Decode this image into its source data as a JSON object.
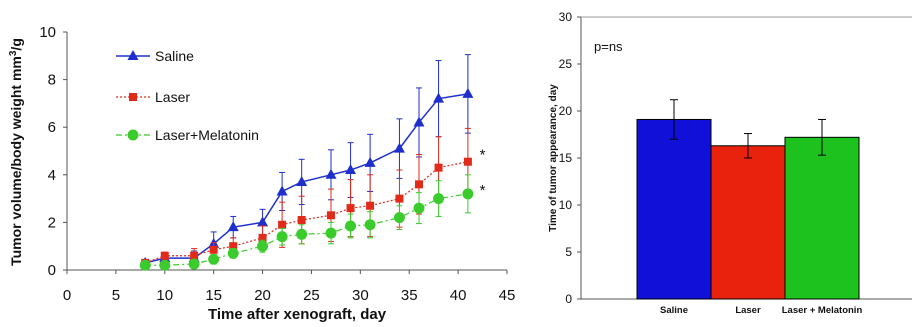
{
  "chart_data": [
    {
      "type": "line",
      "xlabel": "Time after xenograft, day",
      "ylabel_main": "Tumor volume/body weight mm",
      "ylabel_sup": "3",
      "ylabel_tail": "/g",
      "xlim": [
        0,
        45
      ],
      "ylim": [
        0,
        10
      ],
      "xticks": [
        "0",
        "5",
        "10",
        "15",
        "20",
        "25",
        "30",
        "35",
        "40",
        "45"
      ],
      "yticks": [
        "0",
        "2",
        "4",
        "6",
        "8",
        "10"
      ],
      "grid": false,
      "legend_placement": "top-left",
      "series": [
        {
          "name": "Saline",
          "color": "#1f2fcc",
          "marker": "triangle",
          "line": "solid",
          "x": [
            8,
            10,
            13,
            15,
            17,
            20,
            22,
            24,
            27,
            29,
            31,
            34,
            36,
            38,
            41
          ],
          "y": [
            0.3,
            0.5,
            0.5,
            1.1,
            1.8,
            2.0,
            3.3,
            3.7,
            4.0,
            4.2,
            4.5,
            5.1,
            6.2,
            7.2,
            7.4
          ],
          "err": [
            0.1,
            0.15,
            0.3,
            0.5,
            0.45,
            0.55,
            0.8,
            0.95,
            1.05,
            1.15,
            1.2,
            1.25,
            1.45,
            1.6,
            1.65
          ]
        },
        {
          "name": "Laser",
          "color": "#e02a1a",
          "marker": "square",
          "line": "dotted",
          "x": [
            8,
            10,
            13,
            15,
            17,
            20,
            22,
            24,
            27,
            29,
            31,
            34,
            36,
            38,
            41
          ],
          "y": [
            0.3,
            0.6,
            0.6,
            0.85,
            1.0,
            1.35,
            1.9,
            2.1,
            2.3,
            2.6,
            2.7,
            3.0,
            3.6,
            4.3,
            4.55
          ],
          "err": [
            0.1,
            0.15,
            0.3,
            0.3,
            0.35,
            0.5,
            0.95,
            1.0,
            1.1,
            1.2,
            1.3,
            1.2,
            1.25,
            1.3,
            1.4
          ]
        },
        {
          "name": "Laser+Melatonin",
          "color": "#3ccb2c",
          "marker": "circle",
          "line": "dashdot",
          "x": [
            8,
            10,
            13,
            15,
            17,
            20,
            22,
            24,
            27,
            29,
            31,
            34,
            36,
            38,
            41
          ],
          "y": [
            0.2,
            0.2,
            0.25,
            0.45,
            0.7,
            1.0,
            1.4,
            1.5,
            1.55,
            1.85,
            1.9,
            2.2,
            2.6,
            3.0,
            3.2
          ],
          "err": [
            0.05,
            0.05,
            0.1,
            0.2,
            0.2,
            0.25,
            0.35,
            0.4,
            0.45,
            0.5,
            0.55,
            0.5,
            0.65,
            0.75,
            0.8
          ]
        }
      ],
      "annotations": [
        {
          "text": "*",
          "x": 42.5,
          "y": 4.9
        },
        {
          "text": "*",
          "x": 42.5,
          "y": 3.4
        }
      ]
    },
    {
      "type": "bar",
      "ylabel": "Time of tumor appearance, day",
      "ylim": [
        0,
        30
      ],
      "yticks": [
        "0",
        "5",
        "10",
        "15",
        "20",
        "25",
        "30"
      ],
      "grid": false,
      "annotation": "p=ns",
      "categories": [
        "Saline",
        "Laser",
        "Laser + Melatonin"
      ],
      "values": [
        19.1,
        16.3,
        17.2
      ],
      "errors": [
        2.1,
        1.3,
        1.9
      ],
      "colors": [
        "#1010d8",
        "#e8220c",
        "#1ec21e"
      ]
    }
  ]
}
